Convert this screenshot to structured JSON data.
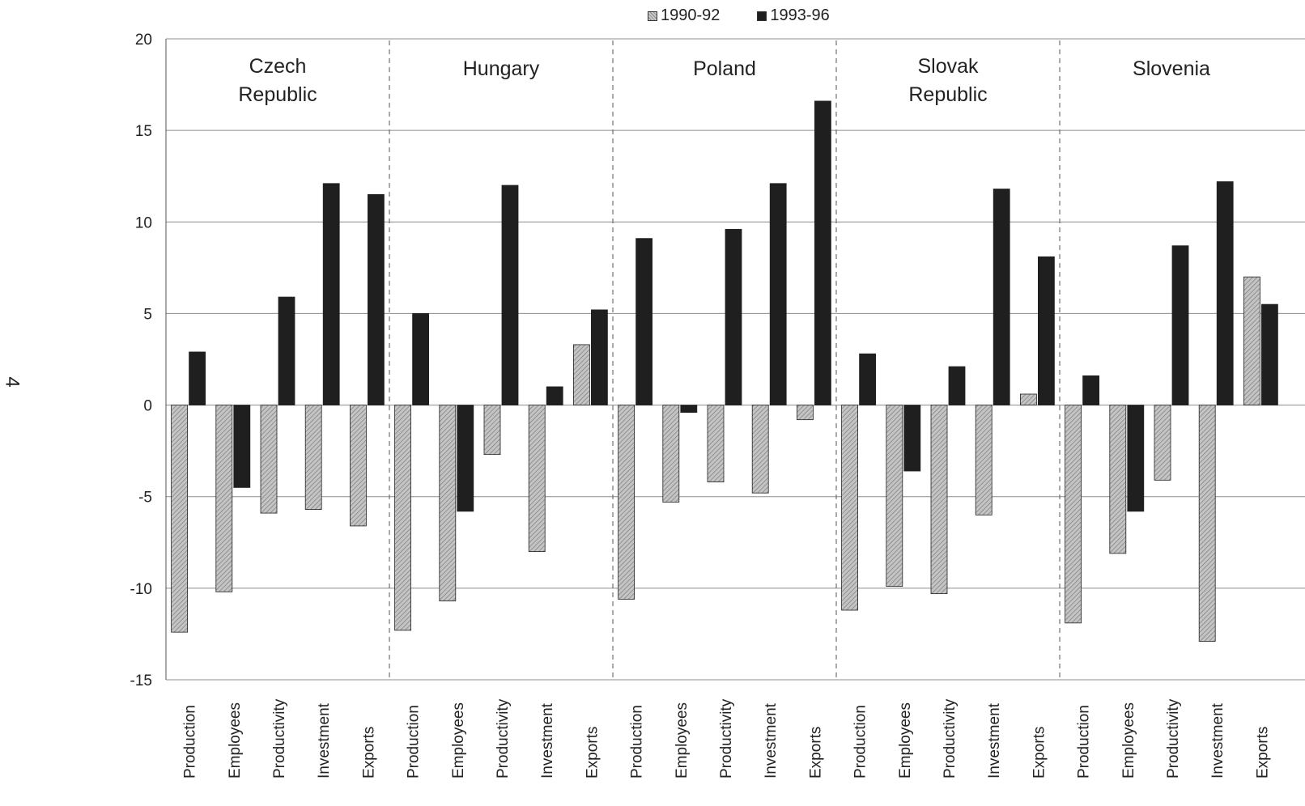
{
  "page_number": "4",
  "chart_data": {
    "type": "bar",
    "ylim": [
      -15,
      20
    ],
    "yticks": [
      20,
      15,
      10,
      5,
      0,
      -5,
      -10,
      -15
    ],
    "grid": true,
    "legend_position": "top",
    "colors": {
      "1990-92": "#a8a8a8",
      "1993-96": "#1f1f1f"
    },
    "series_names": [
      "1990-92",
      "1993-96"
    ],
    "categories": [
      "Production",
      "Employees",
      "Productivity",
      "Investment",
      "Exports"
    ],
    "groups": [
      {
        "name_lines": [
          "Czech",
          "Republic"
        ],
        "series": [
          {
            "name": "1990-92",
            "values": [
              -12.4,
              -10.2,
              -5.9,
              -5.7,
              -6.6
            ]
          },
          {
            "name": "1993-96",
            "values": [
              2.9,
              -4.5,
              5.9,
              12.1,
              11.5
            ]
          }
        ]
      },
      {
        "name_lines": [
          "Hungary"
        ],
        "series": [
          {
            "name": "1990-92",
            "values": [
              -12.3,
              -10.7,
              -2.7,
              -8.0,
              3.3
            ]
          },
          {
            "name": "1993-96",
            "values": [
              5.0,
              -5.8,
              12.0,
              1.0,
              5.2
            ]
          }
        ]
      },
      {
        "name_lines": [
          "Poland"
        ],
        "series": [
          {
            "name": "1990-92",
            "values": [
              -10.6,
              -5.3,
              -4.2,
              -4.8,
              -0.8
            ]
          },
          {
            "name": "1993-96",
            "values": [
              9.1,
              -0.4,
              9.6,
              12.1,
              16.6
            ]
          }
        ]
      },
      {
        "name_lines": [
          "Slovak",
          "Republic"
        ],
        "series": [
          {
            "name": "1990-92",
            "values": [
              -11.2,
              -9.9,
              -10.3,
              -6.0,
              0.6
            ]
          },
          {
            "name": "1993-96",
            "values": [
              2.8,
              -3.6,
              2.1,
              11.8,
              8.1
            ]
          }
        ]
      },
      {
        "name_lines": [
          "Slovenia"
        ],
        "series": [
          {
            "name": "1990-92",
            "values": [
              -11.9,
              -8.1,
              -4.1,
              -12.9,
              7.0
            ]
          },
          {
            "name": "1993-96",
            "values": [
              1.6,
              -5.8,
              8.7,
              12.2,
              5.5
            ]
          }
        ]
      }
    ]
  }
}
